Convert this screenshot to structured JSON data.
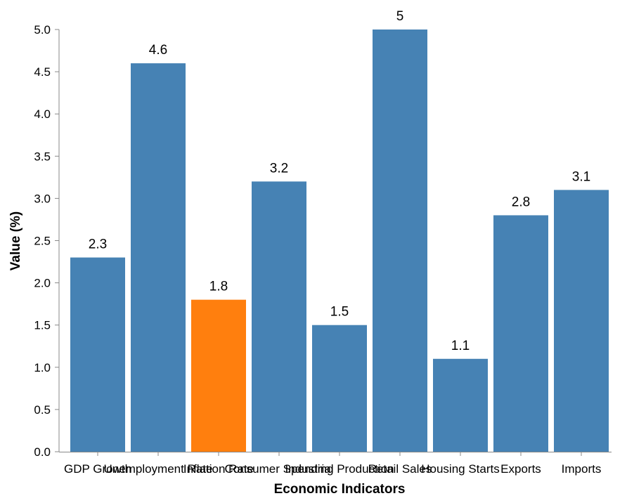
{
  "chart_data": {
    "type": "bar",
    "categories": [
      "GDP Growth",
      "Unemployment Rate",
      "Inflation Rate",
      "Consumer Spending",
      "Industrial Production",
      "Retail Sales",
      "Housing Starts",
      "Exports",
      "Imports"
    ],
    "values": [
      2.3,
      4.6,
      1.8,
      3.2,
      1.5,
      5,
      1.1,
      2.8,
      3.1
    ],
    "value_labels": [
      "2.3",
      "4.6",
      "1.8",
      "3.2",
      "1.5",
      "5",
      "1.1",
      "2.8",
      "3.1"
    ],
    "highlight_category": "Inflation Rate",
    "xlabel": "Economic Indicators",
    "ylabel": "Value (%)",
    "ylim": [
      0,
      5
    ],
    "yticks": [
      "0.0",
      "0.5",
      "1.0",
      "1.5",
      "2.0",
      "2.5",
      "3.0",
      "3.5",
      "4.0",
      "4.5",
      "5.0"
    ],
    "grid": false,
    "colors": {
      "bar": "#4682b4",
      "highlight": "#ff7f0e",
      "axis": "#888888"
    }
  }
}
